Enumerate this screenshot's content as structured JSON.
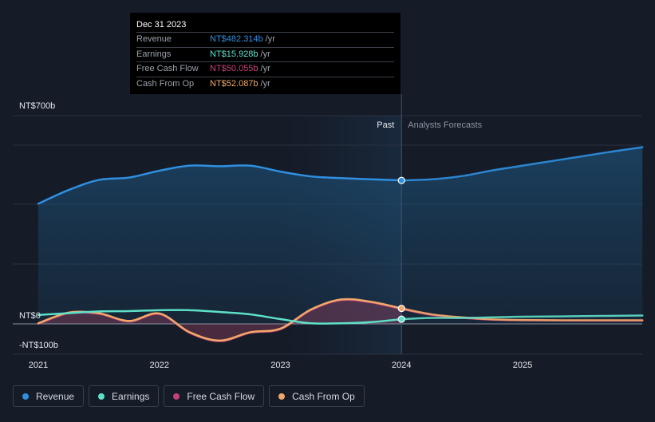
{
  "chart_data": {
    "type": "area",
    "currency_unit": "NT$ billions",
    "y_labels": {
      "top": "NT$700b",
      "zero": "NT$0",
      "bottom": "-NT$100b"
    },
    "ylim": [
      -100,
      700
    ],
    "x_ticks": [
      {
        "label": "2021",
        "year": 2021.0
      },
      {
        "label": "2022",
        "year": 2022.0
      },
      {
        "label": "2023",
        "year": 2023.0
      },
      {
        "label": "2024",
        "year": 2024.0
      },
      {
        "label": "2025",
        "year": 2025.0
      }
    ],
    "xlim": [
      2020.78,
      2025.99
    ],
    "divider_year": 2024.0,
    "past_region_start_year": 2023.0,
    "past_label": "Past",
    "forecast_label": "Analysts Forecasts",
    "series": [
      {
        "name": "Revenue",
        "color": "#2f8fe0",
        "points": [
          [
            2021.0,
            404
          ],
          [
            2021.25,
            450
          ],
          [
            2021.5,
            484
          ],
          [
            2021.75,
            492
          ],
          [
            2022.0,
            515
          ],
          [
            2022.25,
            532
          ],
          [
            2022.5,
            530
          ],
          [
            2022.75,
            532
          ],
          [
            2023.0,
            512
          ],
          [
            2023.25,
            496
          ],
          [
            2023.5,
            490
          ],
          [
            2023.75,
            486
          ],
          [
            2024.0,
            482.3
          ],
          [
            2024.25,
            486
          ],
          [
            2024.5,
            497
          ],
          [
            2024.75,
            516
          ],
          [
            2025.0,
            532
          ],
          [
            2025.25,
            548
          ],
          [
            2025.5,
            564
          ],
          [
            2025.75,
            580
          ],
          [
            2025.99,
            594
          ]
        ]
      },
      {
        "name": "Earnings",
        "color": "#5ee0c8",
        "points": [
          [
            2021.0,
            30
          ],
          [
            2021.25,
            36
          ],
          [
            2021.5,
            42
          ],
          [
            2021.75,
            43
          ],
          [
            2022.0,
            46
          ],
          [
            2022.25,
            46
          ],
          [
            2022.5,
            40
          ],
          [
            2022.75,
            32
          ],
          [
            2023.0,
            16
          ],
          [
            2023.25,
            2
          ],
          [
            2023.5,
            2
          ],
          [
            2023.75,
            6
          ],
          [
            2024.0,
            15.9
          ],
          [
            2024.25,
            20
          ],
          [
            2024.5,
            20
          ],
          [
            2024.75,
            22
          ],
          [
            2025.0,
            24
          ],
          [
            2025.5,
            26
          ],
          [
            2025.99,
            28
          ]
        ]
      },
      {
        "name": "Free Cash Flow",
        "color": "#c4407a",
        "points": [
          [
            2021.0,
            0
          ],
          [
            2021.25,
            36
          ],
          [
            2021.5,
            34
          ],
          [
            2021.75,
            8
          ],
          [
            2022.0,
            33
          ],
          [
            2022.25,
            -30
          ],
          [
            2022.5,
            -58
          ],
          [
            2022.75,
            -30
          ],
          [
            2023.0,
            -18
          ],
          [
            2023.25,
            46
          ],
          [
            2023.5,
            80
          ],
          [
            2023.75,
            72
          ],
          [
            2024.0,
            50.1
          ],
          [
            2024.25,
            30
          ],
          [
            2024.5,
            20
          ],
          [
            2024.75,
            14
          ],
          [
            2025.0,
            12
          ],
          [
            2025.5,
            11
          ],
          [
            2025.99,
            11
          ]
        ]
      },
      {
        "name": "Cash From Op",
        "color": "#f0a868",
        "points": [
          [
            2021.0,
            2
          ],
          [
            2021.25,
            38
          ],
          [
            2021.5,
            36
          ],
          [
            2021.75,
            10
          ],
          [
            2022.0,
            35
          ],
          [
            2022.25,
            -28
          ],
          [
            2022.5,
            -56
          ],
          [
            2022.75,
            -28
          ],
          [
            2023.0,
            -16
          ],
          [
            2023.25,
            48
          ],
          [
            2023.5,
            82
          ],
          [
            2023.75,
            74
          ],
          [
            2024.0,
            52.1
          ],
          [
            2024.25,
            32
          ],
          [
            2024.5,
            22
          ],
          [
            2024.75,
            15
          ],
          [
            2025.0,
            13
          ],
          [
            2025.5,
            12
          ],
          [
            2025.99,
            12
          ]
        ]
      }
    ]
  },
  "tooltip": {
    "title": "Dec 31 2023",
    "unit": "/yr",
    "rows": [
      {
        "label": "Revenue",
        "value": "NT$482.314b",
        "color": "#2f8fe0"
      },
      {
        "label": "Earnings",
        "value": "NT$15.928b",
        "color": "#5ee0c8"
      },
      {
        "label": "Free Cash Flow",
        "value": "NT$50.055b",
        "color": "#c4407a"
      },
      {
        "label": "Cash From Op",
        "value": "NT$52.087b",
        "color": "#f0a868"
      }
    ]
  },
  "legend": [
    {
      "label": "Revenue",
      "color": "#2f8fe0"
    },
    {
      "label": "Earnings",
      "color": "#5ee0c8"
    },
    {
      "label": "Free Cash Flow",
      "color": "#c4407a"
    },
    {
      "label": "Cash From Op",
      "color": "#f0a868"
    }
  ]
}
